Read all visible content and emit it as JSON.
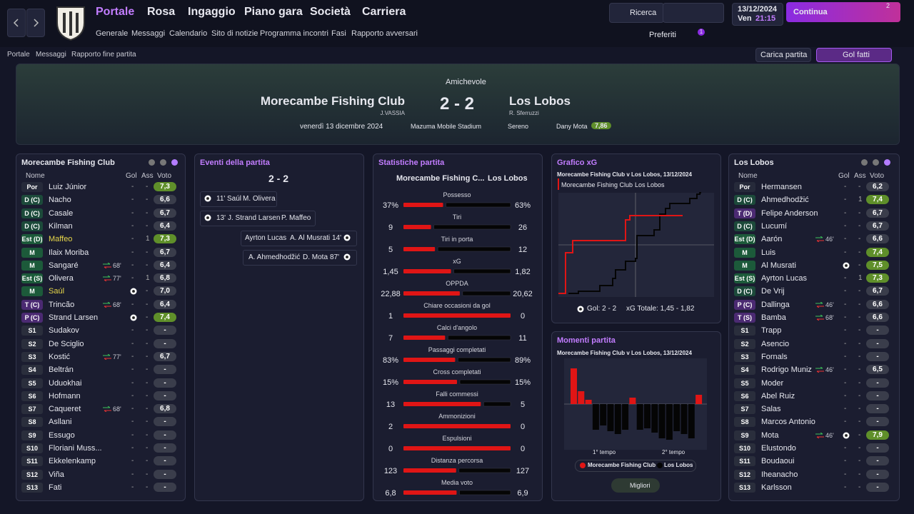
{
  "menu": [
    "Portale",
    "Rosa",
    "Ingaggio",
    "Piano gara",
    "Società",
    "Carriera"
  ],
  "submenu": [
    "Generale",
    "Messaggi",
    "Calendario",
    "Sito di notizie",
    "Programma incontri",
    "Fasi",
    "Rapporto avversari"
  ],
  "toolbar": {
    "search": "Ricerca",
    "date": "13/12/2024",
    "day": "Ven",
    "time": "21:15",
    "continue": "Continua",
    "badge": "2",
    "favorites": "Preferiti",
    "fav_badge": "1"
  },
  "breadcrumb": [
    "Portale",
    "Messaggi",
    "Rapporto fine partita"
  ],
  "actions": {
    "load": "Carica partita",
    "goals": "Gol fatti"
  },
  "match": {
    "competition": "Amichevole",
    "home": "Morecambe Fishing Club",
    "home_manager": "J.VASSIA",
    "score": "2 - 2",
    "away": "Los Lobos",
    "away_manager": "R. Sferruzzi",
    "date": "venerdì 13 dicembre 2024",
    "stadium": "Mazuma Mobile Stadium",
    "weather": "Sereno",
    "motm": "Dany Mota",
    "motm_rating": "7,86"
  },
  "home_panel": {
    "title": "Morecambe Fishing Club",
    "headers": [
      "Nome",
      "Gol",
      "Ass",
      "Voto"
    ],
    "players": [
      {
        "pos": "Por",
        "name": "Luiz Júnior",
        "gol": "-",
        "ass": "-",
        "voto": "7,3"
      },
      {
        "pos": "D (C)",
        "name": "Nacho",
        "gol": "-",
        "ass": "-",
        "voto": "6,6"
      },
      {
        "pos": "D (C)",
        "name": "Casale",
        "gol": "-",
        "ass": "-",
        "voto": "6,7"
      },
      {
        "pos": "D (C)",
        "name": "Kilman",
        "gol": "-",
        "ass": "-",
        "voto": "6,4"
      },
      {
        "pos": "Est (D)",
        "name": "Maffeo",
        "gol": "-",
        "ass": "1",
        "voto": "7,3",
        "color": "#e8d84a"
      },
      {
        "pos": "M",
        "name": "Ilaix Moriba",
        "gol": "-",
        "ass": "-",
        "voto": "6,7"
      },
      {
        "pos": "M",
        "name": "Sangaré",
        "sub": "68'",
        "gol": "-",
        "ass": "-",
        "voto": "6,4"
      },
      {
        "pos": "Est (S)",
        "name": "Olivera",
        "sub": "77'",
        "gol": "-",
        "ass": "1",
        "voto": "6,8"
      },
      {
        "pos": "M",
        "name": "Saúl",
        "gol": 1,
        "ass": "-",
        "voto": "7,0",
        "color": "#e8d84a"
      },
      {
        "pos": "T (C)",
        "name": "Trincão",
        "sub": "68'",
        "gol": "-",
        "ass": "-",
        "voto": "6,4"
      },
      {
        "pos": "P (C)",
        "name": "Strand Larsen",
        "gol": 1,
        "ass": "-",
        "voto": "7,4"
      },
      {
        "pos": "S1",
        "name": "Sudakov",
        "gol": "-",
        "ass": "-",
        "voto": "-"
      },
      {
        "pos": "S2",
        "name": "De Sciglio",
        "gol": "-",
        "ass": "-",
        "voto": "-"
      },
      {
        "pos": "S3",
        "name": "Kostić",
        "sub": "77'",
        "gol": "-",
        "ass": "-",
        "voto": "6,7"
      },
      {
        "pos": "S4",
        "name": "Beltrán",
        "gol": "-",
        "ass": "-",
        "voto": "-"
      },
      {
        "pos": "S5",
        "name": "Uduokhai",
        "gol": "-",
        "ass": "-",
        "voto": "-"
      },
      {
        "pos": "S6",
        "name": "Hofmann",
        "gol": "-",
        "ass": "-",
        "voto": "-"
      },
      {
        "pos": "S7",
        "name": "Caqueret",
        "sub": "68'",
        "gol": "-",
        "ass": "-",
        "voto": "6,8"
      },
      {
        "pos": "S8",
        "name": "Asllani",
        "gol": "-",
        "ass": "-",
        "voto": "-"
      },
      {
        "pos": "S9",
        "name": "Essugo",
        "gol": "-",
        "ass": "-",
        "voto": "-"
      },
      {
        "pos": "S10",
        "name": "Floriani Muss...",
        "gol": "-",
        "ass": "-",
        "voto": "-"
      },
      {
        "pos": "S11",
        "name": "Ekkelenkamp",
        "gol": "-",
        "ass": "-",
        "voto": "-"
      },
      {
        "pos": "S12",
        "name": "Viña",
        "gol": "-",
        "ass": "-",
        "voto": "-"
      },
      {
        "pos": "S13",
        "name": "Fati",
        "gol": "-",
        "ass": "-",
        "voto": "-"
      }
    ]
  },
  "away_panel": {
    "title": "Los Lobos",
    "headers": [
      "Nome",
      "Gol",
      "Ass",
      "Voto"
    ],
    "players": [
      {
        "pos": "Por",
        "name": "Hermansen",
        "gol": "-",
        "ass": "-",
        "voto": "6,2"
      },
      {
        "pos": "D (C)",
        "name": "Ahmedhodžić",
        "gol": "-",
        "ass": "1",
        "voto": "7,4"
      },
      {
        "pos": "T (D)",
        "name": "Felipe Anderson",
        "gol": "-",
        "ass": "-",
        "voto": "6,7"
      },
      {
        "pos": "D (C)",
        "name": "Lucumí",
        "gol": "-",
        "ass": "-",
        "voto": "6,7"
      },
      {
        "pos": "Est (D)",
        "name": "Aarón",
        "sub": "46'",
        "gol": "-",
        "ass": "-",
        "voto": "6,6"
      },
      {
        "pos": "M",
        "name": "Luis",
        "gol": "-",
        "ass": "-",
        "voto": "7,4"
      },
      {
        "pos": "M",
        "name": "Al Musrati",
        "gol": 1,
        "ass": "-",
        "voto": "7,5"
      },
      {
        "pos": "Est (S)",
        "name": "Ayrton Lucas",
        "gol": "-",
        "ass": "1",
        "voto": "7,3"
      },
      {
        "pos": "D (C)",
        "name": "De Vrij",
        "gol": "-",
        "ass": "-",
        "voto": "6,7"
      },
      {
        "pos": "P (C)",
        "name": "Dallinga",
        "sub": "46'",
        "gol": "-",
        "ass": "-",
        "voto": "6,6"
      },
      {
        "pos": "T (S)",
        "name": "Bamba",
        "sub": "68'",
        "gol": "-",
        "ass": "-",
        "voto": "6,6"
      },
      {
        "pos": "S1",
        "name": "Trapp",
        "gol": "-",
        "ass": "-",
        "voto": "-"
      },
      {
        "pos": "S2",
        "name": "Asencio",
        "gol": "-",
        "ass": "-",
        "voto": "-"
      },
      {
        "pos": "S3",
        "name": "Fornals",
        "gol": "-",
        "ass": "-",
        "voto": "-"
      },
      {
        "pos": "S4",
        "name": "Rodrigo Muniz",
        "sub": "46'",
        "gol": "-",
        "ass": "-",
        "voto": "6,5"
      },
      {
        "pos": "S5",
        "name": "Moder",
        "gol": "-",
        "ass": "-",
        "voto": "-"
      },
      {
        "pos": "S6",
        "name": "Abel Ruiz",
        "gol": "-",
        "ass": "-",
        "voto": "-"
      },
      {
        "pos": "S7",
        "name": "Salas",
        "gol": "-",
        "ass": "-",
        "voto": "-"
      },
      {
        "pos": "S8",
        "name": "Marcos Antonio",
        "gol": "-",
        "ass": "-",
        "voto": "-"
      },
      {
        "pos": "S9",
        "name": "Mota",
        "sub": "46'",
        "gol": 1,
        "ass": "-",
        "voto": "7,9"
      },
      {
        "pos": "S10",
        "name": "Elustondo",
        "gol": "-",
        "ass": "-",
        "voto": "-"
      },
      {
        "pos": "S11",
        "name": "Boudaoui",
        "gol": "-",
        "ass": "-",
        "voto": "-"
      },
      {
        "pos": "S12",
        "name": "Iheanacho",
        "gol": "-",
        "ass": "-",
        "voto": "-"
      },
      {
        "pos": "S13",
        "name": "Karlsson",
        "gol": "-",
        "ass": "-",
        "voto": "-"
      }
    ]
  },
  "events": {
    "title": "Eventi della partita",
    "score": "2 - 2",
    "home_goals": [
      {
        "minute": "11'",
        "scorer": "Saúl",
        "assist": "M. Olivera"
      },
      {
        "minute": "13'",
        "scorer": "J. Strand Larsen",
        "assist": "P. Maffeo"
      }
    ],
    "away_goals": [
      {
        "minute": "14'",
        "scorer": "A. Al Musrati",
        "assist": "Ayrton Lucas"
      },
      {
        "minute": "87'",
        "scorer": "D. Mota",
        "assist": "A. Ahmedhodžić"
      }
    ]
  },
  "stats": {
    "title": "Statistiche partita",
    "home": "Morecambe Fishing C...",
    "away": "Los Lobos",
    "rows": [
      {
        "label": "Possesso",
        "home": 37,
        "away": 63,
        "home_label": "37%",
        "away_label": "63%"
      },
      {
        "label": "Tiri",
        "home": 9,
        "away": 26
      },
      {
        "label": "Tiri in porta",
        "home": 5,
        "away": 12
      },
      {
        "label": "xG",
        "home": 1.45,
        "away": 1.82,
        "home_label": "1,45",
        "away_label": "1,82"
      },
      {
        "label": "OPPDA",
        "home": 22.88,
        "away": 20.62,
        "home_label": "22,88",
        "away_label": "20,62"
      },
      {
        "label": "Chiare occasioni da gol",
        "home": 1,
        "away": 0
      },
      {
        "label": "Calci d'angolo",
        "home": 7,
        "away": 11
      },
      {
        "label": "Passaggi completati",
        "home": 83,
        "away": 89,
        "home_label": "83%",
        "away_label": "89%"
      },
      {
        "label": "Cross completati",
        "home": 15,
        "away": 15,
        "home_label": "15%",
        "away_label": "15%"
      },
      {
        "label": "Falli commessi",
        "home": 13,
        "away": 5
      },
      {
        "label": "Ammonizioni",
        "home": 2,
        "away": 0
      },
      {
        "label": "Espulsioni",
        "home": 0,
        "away": 0
      },
      {
        "label": "Distanza percorsa",
        "home": 123,
        "away": 127
      },
      {
        "label": "Media voto",
        "home": 6.8,
        "away": 6.9,
        "home_label": "6,8",
        "away_label": "6,9"
      }
    ]
  },
  "xg": {
    "title": "Grafico xG",
    "subtitle": "Morecambe Fishing Club v Los Lobos, 13/12/2024",
    "legend": [
      "Morecambe Fishing Club",
      "Los Lobos"
    ],
    "goals_label": "Gol: 2 - 2",
    "total_label": "xG Totale: 1,45 - 1,82"
  },
  "momentum": {
    "title": "Momenti partita",
    "subtitle": "Morecambe Fishing Club v Los Lobos, 13/12/2024",
    "ylim": [
      -60,
      60
    ],
    "values": [
      50,
      18,
      6,
      -36,
      -30,
      -38,
      -42,
      -36,
      9,
      -36,
      -34,
      -40,
      -48,
      -50,
      -38,
      -42,
      -48,
      13
    ],
    "colors": [
      "#e01515",
      "#050505"
    ],
    "halves": [
      "1° tempo",
      "2° tempo"
    ],
    "legend": [
      "Morecambe Fishing Club",
      "Los Lobos"
    ],
    "button": "Migliori"
  }
}
